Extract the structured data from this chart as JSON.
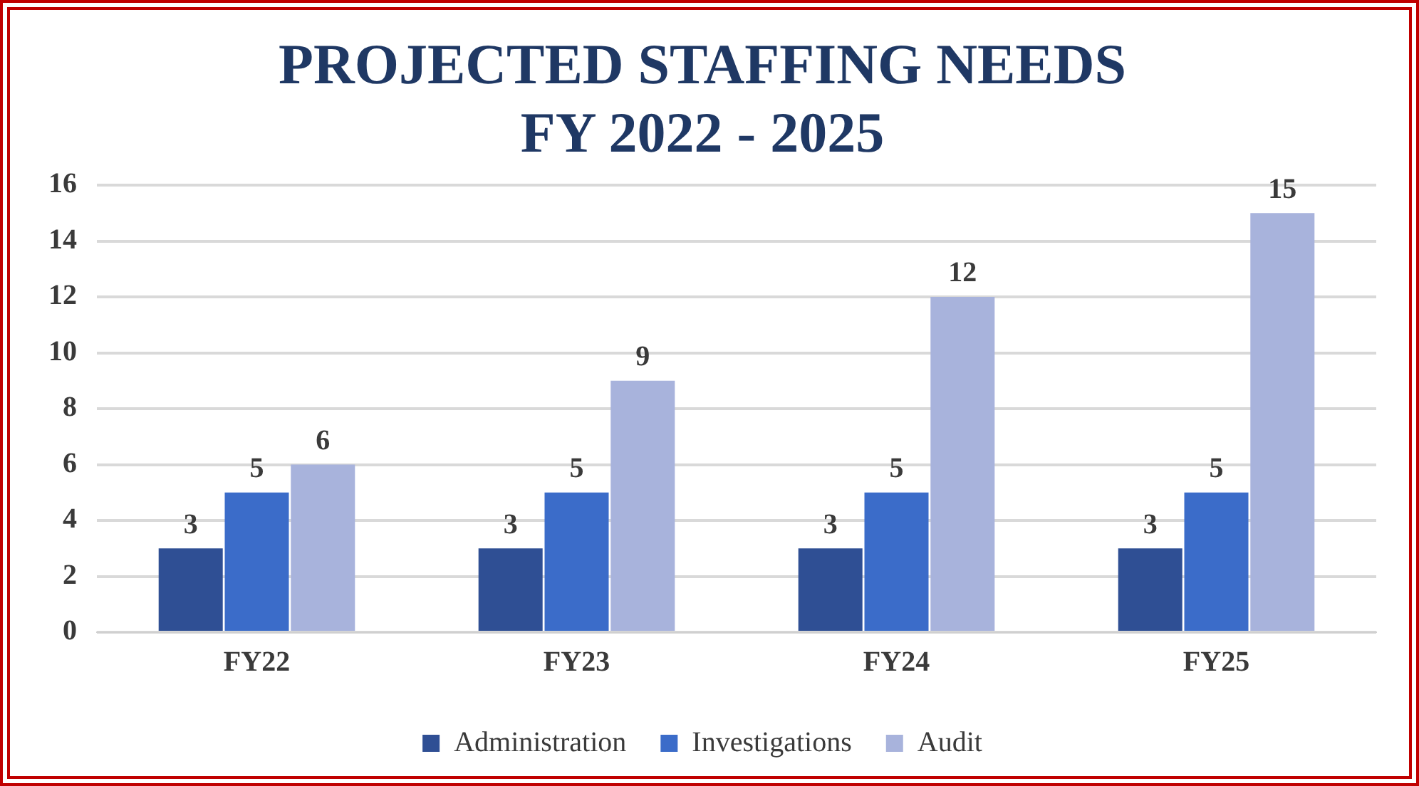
{
  "chart_data": {
    "type": "bar",
    "title": "PROJECTED STAFFING NEEDS\nFY 2022 - 2025",
    "categories": [
      "FY22",
      "FY23",
      "FY24",
      "FY25"
    ],
    "series": [
      {
        "name": "Administration",
        "color": "#2f4f94",
        "values": [
          3,
          3,
          3,
          3
        ]
      },
      {
        "name": "Investigations",
        "color": "#3b6cc9",
        "values": [
          5,
          5,
          5,
          5
        ]
      },
      {
        "name": "Audit",
        "color": "#a8b3dc",
        "values": [
          6,
          9,
          12,
          15
        ]
      }
    ],
    "ylim": [
      0,
      16
    ],
    "yticks": [
      0,
      2,
      4,
      6,
      8,
      10,
      12,
      14,
      16
    ],
    "grid": "y",
    "legend": "bottom",
    "data_labels": true
  }
}
